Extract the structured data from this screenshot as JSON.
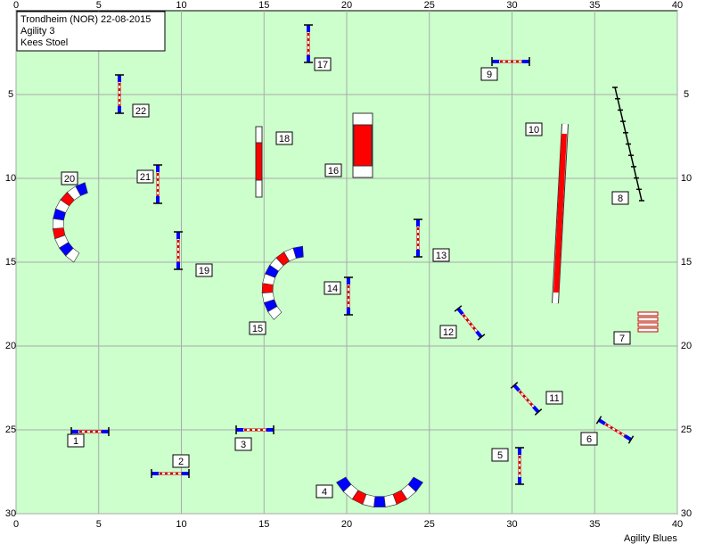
{
  "header": {
    "lines": [
      "Trondheim (NOR) 22-08-2015",
      "Agility 3",
      "Kees Stoel"
    ]
  },
  "axes": {
    "x_ticks": [
      0,
      5,
      10,
      15,
      20,
      25,
      30,
      35,
      40
    ],
    "y_ticks": [
      5,
      10,
      15,
      20,
      25,
      30
    ]
  },
  "obstacles": [
    {
      "label": 1
    },
    {
      "label": 2
    },
    {
      "label": 3
    },
    {
      "label": 4
    },
    {
      "label": 5
    },
    {
      "label": 6
    },
    {
      "label": 7
    },
    {
      "label": 8
    },
    {
      "label": 9
    },
    {
      "label": 10
    },
    {
      "label": 11
    },
    {
      "label": 12
    },
    {
      "label": 13
    },
    {
      "label": 14
    },
    {
      "label": 15
    },
    {
      "label": 16
    },
    {
      "label": 17
    },
    {
      "label": 18
    },
    {
      "label": 19
    },
    {
      "label": 20
    },
    {
      "label": 21
    },
    {
      "label": 22
    }
  ],
  "footer": "Agility Blues"
}
